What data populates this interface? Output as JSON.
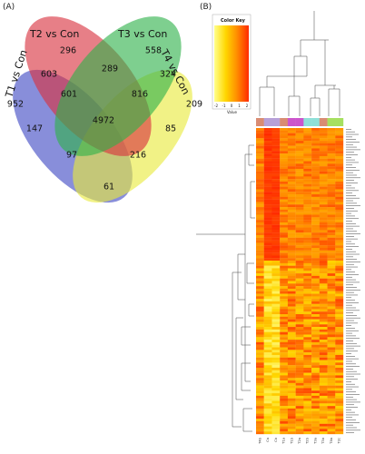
{
  "panel_a": {
    "label": "(A)",
    "sets": [
      {
        "name": "T1 vs Con",
        "color": "#3f48c4"
      },
      {
        "name": "T2 vs Con",
        "color": "#d9303e"
      },
      {
        "name": "T3 vs Con",
        "color": "#2fb24a"
      },
      {
        "name": "T4 vs Con",
        "color": "#e8ea3c"
      }
    ],
    "regions": {
      "t1_only": "952",
      "t2_only": "296",
      "t3_only": "558",
      "t4_only": "209",
      "t1_t2": "603",
      "t2_t3": "289",
      "t3_t4": "324",
      "t1_t2_t3": "601",
      "t2_t3_t4": "816",
      "t1_t4": "147",
      "all": "4972",
      "t1_t3_t4": "85",
      "t1_t2_t4": "97",
      "t1_t3": "216",
      "t2_t4": "61"
    }
  },
  "panel_b": {
    "label": "(B)",
    "color_key": {
      "title": "Color Key",
      "ticks": [
        "-2",
        "-1",
        "0",
        "1",
        "2"
      ],
      "xlabel": "Value",
      "colors": [
        "#ffff8c",
        "#ffd700",
        "#ff8c00",
        "#ff2a00"
      ]
    },
    "sample_colors": [
      "#d98c73",
      "#b7a0d8",
      "#b7a0d8",
      "#d98c73",
      "#cc55cc",
      "#cc55cc",
      "#8fe0d8",
      "#8fe0d8",
      "#d98c73",
      "#a6e060",
      "#a6e060"
    ],
    "sample_labels": [
      "T4b",
      "Ca",
      "Cb",
      "T1a",
      "T1b",
      "T2a",
      "T2b",
      "T3a",
      "T3b",
      "T4a",
      "T2c"
    ]
  }
}
